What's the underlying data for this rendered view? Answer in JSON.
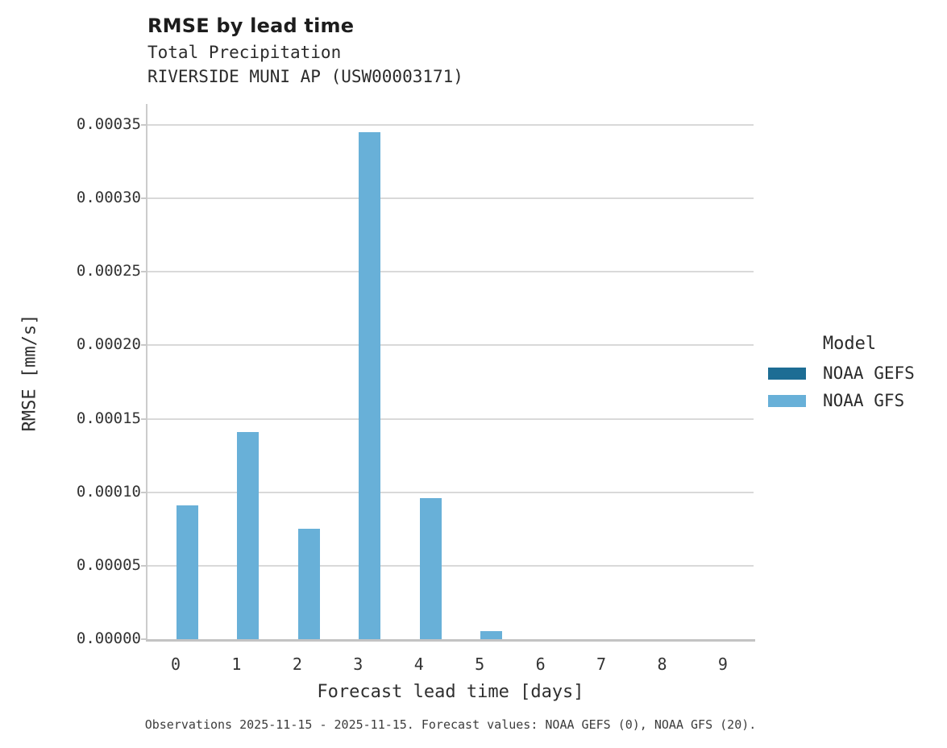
{
  "header": {
    "title": "RMSE by lead time",
    "subtitle_line1": "Total Precipitation",
    "subtitle_line2": "RIVERSIDE MUNI AP (USW00003171)"
  },
  "axes": {
    "x_title": "Forecast lead time [days]",
    "y_title": "RMSE [mm/s]"
  },
  "legend": {
    "title": "Model",
    "entries": [
      {
        "label": "NOAA GEFS",
        "color": "#1d6d94"
      },
      {
        "label": "NOAA GFS",
        "color": "#68b0d8"
      }
    ]
  },
  "caption": {
    "text": "Observations 2025-11-15 - 2025-11-15. Forecast values: NOAA GEFS (0), NOAA GFS (20)."
  },
  "chart_data": {
    "type": "bar",
    "title": "RMSE by lead time",
    "subtitle": [
      "Total Precipitation",
      "RIVERSIDE MUNI AP (USW00003171)"
    ],
    "xlabel": "Forecast lead time [days]",
    "ylabel": "RMSE [mm/s]",
    "categories": [
      "0",
      "1",
      "2",
      "3",
      "4",
      "5",
      "6",
      "7",
      "8",
      "9"
    ],
    "series": [
      {
        "name": "NOAA GEFS",
        "color": "#1d6d94",
        "values": [
          0,
          0,
          0,
          0,
          0,
          0,
          0,
          0,
          0,
          0
        ]
      },
      {
        "name": "NOAA GFS",
        "color": "#68b0d8",
        "values": [
          9.1e-05,
          0.000141,
          7.5e-05,
          0.000345,
          9.6e-05,
          5.5e-06,
          0,
          0,
          0,
          0
        ]
      }
    ],
    "ylim": [
      0,
      0.000365
    ],
    "yticks": [
      0,
      5e-05,
      0.0001,
      0.00015,
      0.0002,
      0.00025,
      0.0003,
      0.00035
    ],
    "ytick_labels": [
      "0.00000",
      "0.00005",
      "0.00010",
      "0.00015",
      "0.00020",
      "0.00025",
      "0.00030",
      "0.00035"
    ],
    "grid": true,
    "grid_color": "#d9d9d9",
    "legend_position": "right",
    "legend_title": "Model"
  }
}
